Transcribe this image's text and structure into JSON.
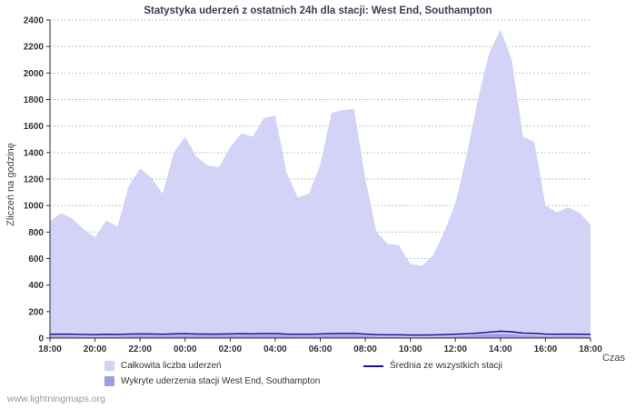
{
  "chart": {
    "title": "Statystyka uderzeń z ostatnich 24h dla stacji: West End, Southampton",
    "ylabel": "Zliczeń na godzinę",
    "xlabel": "Czas"
  },
  "legend": {
    "total": "Całkowita liczba uderzeń",
    "station": "Wykryte uderzenia stacji West End, Southampton",
    "average": "Średnia ze wszystkich stacji"
  },
  "footer": {
    "watermark": "www.lightningmaps.org"
  },
  "colors": {
    "total_fill": "#d3d3f8",
    "station_fill": "#9e9ee4",
    "average_line": "#11118c",
    "grid": "#c2c2c2",
    "axis": "#333333",
    "text": "#333333"
  },
  "chart_data": {
    "type": "area",
    "title": "Statystyka uderzeń z ostatnich 24h dla stacji: West End, Southampton",
    "xlabel": "Czas",
    "ylabel": "Zliczeń na godzinę",
    "ylim": [
      0,
      2400
    ],
    "grid": "horizontal-dotted",
    "legend_position": "bottom",
    "y_ticks": [
      0,
      200,
      400,
      600,
      800,
      1000,
      1200,
      1400,
      1600,
      1800,
      2000,
      2200,
      2400
    ],
    "x_tick_labels": [
      "18:00",
      "20:00",
      "22:00",
      "00:00",
      "02:00",
      "04:00",
      "06:00",
      "08:00",
      "10:00",
      "12:00",
      "14:00",
      "16:00",
      "18:00"
    ],
    "x_hours": [
      0,
      0.5,
      1,
      1.5,
      2,
      2.5,
      3,
      3.5,
      4,
      4.5,
      5,
      5.5,
      6,
      6.5,
      7,
      7.5,
      8,
      8.5,
      9,
      9.5,
      10,
      10.5,
      11,
      11.5,
      12,
      12.5,
      13,
      13.5,
      14,
      14.5,
      15,
      15.5,
      16,
      16.5,
      17,
      17.5,
      18,
      18.5,
      19,
      19.5,
      20,
      20.5,
      21,
      21.5,
      22,
      22.5,
      23,
      23.5,
      24
    ],
    "series": [
      {
        "name": "Całkowita liczba uderzeń",
        "type": "area",
        "values": [
          880,
          945,
          900,
          820,
          760,
          890,
          840,
          1150,
          1280,
          1210,
          1090,
          1400,
          1520,
          1370,
          1300,
          1290,
          1440,
          1545,
          1520,
          1660,
          1680,
          1250,
          1060,
          1090,
          1310,
          1700,
          1720,
          1730,
          1200,
          800,
          710,
          700,
          560,
          545,
          620,
          800,
          1020,
          1380,
          1800,
          2150,
          2330,
          2100,
          1520,
          1480,
          1000,
          950,
          985,
          950,
          855
        ]
      },
      {
        "name": "Wykryte uderzenia stacji West End, Southampton",
        "type": "area",
        "values": [
          12,
          14,
          13,
          11,
          10,
          12,
          11,
          16,
          18,
          17,
          15,
          19,
          21,
          19,
          18,
          18,
          20,
          21,
          21,
          23,
          23,
          17,
          15,
          15,
          18,
          23,
          24,
          24,
          16,
          11,
          10,
          10,
          8,
          8,
          9,
          11,
          14,
          19,
          25,
          30,
          32,
          29,
          21,
          20,
          14,
          13,
          14,
          13,
          12
        ]
      },
      {
        "name": "Średnia ze wszystkich stacji",
        "type": "line",
        "values": [
          28,
          30,
          29,
          27,
          26,
          28,
          27,
          30,
          32,
          31,
          29,
          32,
          33,
          31,
          30,
          30,
          32,
          33,
          32,
          34,
          34,
          30,
          28,
          28,
          31,
          34,
          35,
          35,
          30,
          26,
          25,
          25,
          23,
          23,
          24,
          26,
          29,
          33,
          38,
          45,
          52,
          48,
          38,
          36,
          30,
          29,
          30,
          29,
          28
        ]
      }
    ]
  }
}
